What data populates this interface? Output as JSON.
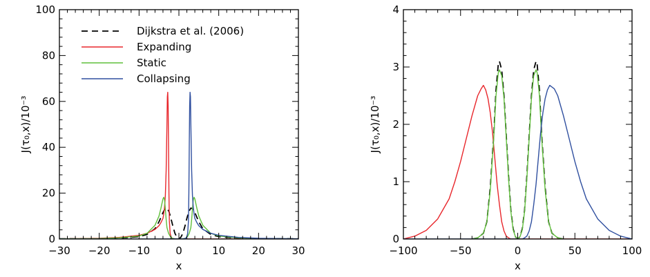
{
  "chart_data": [
    {
      "type": "line",
      "xlabel": "x",
      "ylabel": "J(τ₀,x)/10⁻³",
      "xlim": [
        -30,
        30
      ],
      "ylim": [
        0,
        100
      ],
      "x_ticks": [
        -30,
        -20,
        -10,
        0,
        10,
        20,
        30
      ],
      "y_ticks": [
        0,
        20,
        40,
        60,
        80,
        100
      ],
      "x_tick_labels": [
        "−30",
        "−20",
        "−10",
        "0",
        "10",
        "20",
        "30"
      ],
      "y_tick_labels": [
        "0",
        "20",
        "40",
        "60",
        "80",
        "100"
      ],
      "legend": {
        "placement": "top-left",
        "entries": [
          {
            "label": "Dijkstra et al. (2006)",
            "color": "#000000",
            "dash": "dashed"
          },
          {
            "label": "Expanding",
            "color": "#e8262b",
            "dash": "solid"
          },
          {
            "label": "Static",
            "color": "#5fbf3a",
            "dash": "solid"
          },
          {
            "label": "Collapsing",
            "color": "#2f4f9f",
            "dash": "solid"
          }
        ]
      },
      "series": [
        {
          "name": "Dijkstra et al. (2006)",
          "color": "#000000",
          "dash": "dashed",
          "x": [
            -30,
            -20,
            -15,
            -10,
            -8,
            -6,
            -5,
            -4,
            -3.5,
            -3,
            -2.5,
            -2,
            -1.5,
            -1,
            -0.5,
            0,
            0.5,
            1,
            1.5,
            2,
            2.5,
            3,
            3.5,
            4,
            5,
            6,
            8,
            10,
            15,
            20,
            30
          ],
          "y": [
            0.1,
            0.2,
            0.4,
            1.0,
            2.0,
            4.5,
            7.5,
            11.5,
            13.2,
            13.5,
            12.0,
            9.0,
            5.5,
            2.5,
            0.8,
            0.0,
            0.8,
            2.5,
            5.5,
            9.0,
            12.0,
            13.5,
            13.2,
            11.5,
            7.5,
            4.5,
            2.0,
            1.0,
            0.4,
            0.2,
            0.1
          ]
        },
        {
          "name": "Expanding",
          "color": "#e8262b",
          "dash": "solid",
          "x": [
            -30,
            -20,
            -15,
            -10,
            -8,
            -6,
            -5,
            -4.5,
            -4,
            -3.8,
            -3.6,
            -3.4,
            -3.2,
            -3.0,
            -2.9,
            -2.8,
            -2.7,
            -2.6,
            -2.5,
            -2.4,
            -2.2,
            -2.0,
            -1.8,
            -1.5,
            -1.0,
            0,
            2,
            5,
            10,
            30
          ],
          "y": [
            0.1,
            0.3,
            0.7,
            1.6,
            2.5,
            4.2,
            5.8,
            7.2,
            9.0,
            11.0,
            14.0,
            19.0,
            30.0,
            50.0,
            62.0,
            64.0,
            58.0,
            40.0,
            20.0,
            8.0,
            2.5,
            1.0,
            0.5,
            0.2,
            0.1,
            0.05,
            0.02,
            0.01,
            0.0,
            0.0
          ]
        },
        {
          "name": "Static",
          "color": "#5fbf3a",
          "dash": "solid",
          "x": [
            -30,
            -20,
            -15,
            -10,
            -8,
            -6,
            -5,
            -4.5,
            -4,
            -3.8,
            -3.6,
            -3.4,
            -3.2,
            -3.0,
            -2.6,
            -2.2,
            -1.8,
            -1.4,
            -1.0,
            -0.5,
            0,
            0.5,
            1.0,
            1.4,
            1.8,
            2.2,
            2.6,
            3.0,
            3.2,
            3.4,
            3.6,
            3.8,
            4,
            4.5,
            5,
            6,
            8,
            10,
            15,
            20,
            30
          ],
          "y": [
            0.1,
            0.2,
            0.5,
            1.3,
            2.5,
            6.0,
            10.0,
            13.5,
            17.5,
            18.2,
            17.0,
            13.0,
            8.5,
            5.0,
            2.5,
            1.2,
            0.5,
            0.2,
            0.1,
            0.0,
            0.0,
            0.0,
            0.1,
            0.2,
            0.5,
            1.2,
            2.5,
            5.0,
            8.5,
            13.0,
            17.0,
            18.2,
            17.5,
            13.5,
            10.0,
            6.0,
            2.5,
            1.3,
            0.5,
            0.2,
            0.1
          ]
        },
        {
          "name": "Collapsing",
          "color": "#2f4f9f",
          "dash": "solid",
          "x": [
            -30,
            -10,
            -5,
            -2,
            1.0,
            1.5,
            1.8,
            2.0,
            2.2,
            2.4,
            2.5,
            2.6,
            2.7,
            2.8,
            2.9,
            3.0,
            3.2,
            3.4,
            3.6,
            3.8,
            4.0,
            4.5,
            5,
            6,
            8,
            10,
            15,
            20,
            30
          ],
          "y": [
            0.0,
            0.0,
            0.01,
            0.05,
            0.1,
            0.2,
            0.5,
            1.0,
            2.5,
            8.0,
            20.0,
            40.0,
            58.0,
            64.0,
            62.0,
            50.0,
            30.0,
            19.0,
            14.0,
            11.0,
            9.0,
            7.2,
            5.8,
            4.2,
            2.5,
            1.6,
            0.7,
            0.3,
            0.1
          ]
        }
      ]
    },
    {
      "type": "line",
      "xlabel": "x",
      "ylabel": "J(τ₀,x)/10⁻³",
      "xlim": [
        -100,
        100
      ],
      "ylim": [
        0,
        4
      ],
      "x_ticks": [
        -100,
        -50,
        0,
        50,
        100
      ],
      "y_ticks": [
        0,
        1,
        2,
        3,
        4
      ],
      "x_tick_labels": [
        "−100",
        "−50",
        "0",
        "50",
        "100"
      ],
      "y_tick_labels": [
        "0",
        "1",
        "2",
        "3",
        "4"
      ],
      "series": [
        {
          "name": "Dijkstra et al. (2006)",
          "color": "#000000",
          "dash": "dashed",
          "x": [
            -40,
            -35,
            -30,
            -27,
            -24,
            -21,
            -19,
            -17,
            -16,
            -14,
            -12,
            -10,
            -8,
            -6,
            -4,
            -2,
            0,
            2,
            4,
            6,
            8,
            10,
            12,
            14,
            16,
            17,
            19,
            21,
            24,
            27,
            30,
            35,
            40
          ],
          "y": [
            0.0,
            0.02,
            0.1,
            0.3,
            0.9,
            1.8,
            2.6,
            3.05,
            3.1,
            2.95,
            2.5,
            1.8,
            1.1,
            0.5,
            0.18,
            0.04,
            0.0,
            0.04,
            0.18,
            0.5,
            1.1,
            1.8,
            2.5,
            2.95,
            3.1,
            3.05,
            2.6,
            1.8,
            0.9,
            0.3,
            0.1,
            0.02,
            0.0
          ]
        },
        {
          "name": "Expanding",
          "color": "#e8262b",
          "dash": "solid",
          "x": [
            -100,
            -90,
            -80,
            -70,
            -60,
            -55,
            -50,
            -45,
            -40,
            -35,
            -32,
            -30,
            -28,
            -26,
            -24,
            -22,
            -20,
            -18,
            -16,
            -14,
            -12,
            -10,
            -8,
            -6,
            -4,
            -2,
            0,
            10,
            50,
            100
          ],
          "y": [
            0.0,
            0.05,
            0.15,
            0.35,
            0.7,
            1.0,
            1.35,
            1.75,
            2.15,
            2.5,
            2.62,
            2.68,
            2.6,
            2.45,
            2.2,
            1.85,
            1.4,
            0.95,
            0.6,
            0.3,
            0.14,
            0.05,
            0.02,
            0.0,
            0.0,
            0.0,
            0.0,
            0.0,
            0.0,
            0.0
          ]
        },
        {
          "name": "Static",
          "color": "#5fbf3a",
          "dash": "solid",
          "x": [
            -40,
            -35,
            -30,
            -27,
            -24,
            -21,
            -19,
            -17,
            -16,
            -14,
            -12,
            -10,
            -8,
            -6,
            -4,
            -2,
            0,
            2,
            4,
            6,
            8,
            10,
            12,
            14,
            16,
            17,
            19,
            21,
            24,
            27,
            30,
            35,
            40
          ],
          "y": [
            0.0,
            0.02,
            0.1,
            0.3,
            0.85,
            1.75,
            2.5,
            2.9,
            2.95,
            2.85,
            2.45,
            1.75,
            1.05,
            0.48,
            0.16,
            0.04,
            0.0,
            0.04,
            0.16,
            0.48,
            1.05,
            1.75,
            2.45,
            2.85,
            2.95,
            2.9,
            2.5,
            1.75,
            0.85,
            0.3,
            0.1,
            0.02,
            0.0
          ]
        },
        {
          "name": "Collapsing",
          "color": "#2f4f9f",
          "dash": "solid",
          "x": [
            -100,
            -50,
            -10,
            0,
            2,
            4,
            6,
            8,
            10,
            12,
            14,
            16,
            18,
            20,
            22,
            24,
            26,
            28,
            30,
            32,
            35,
            40,
            45,
            50,
            55,
            60,
            70,
            80,
            90,
            100
          ],
          "y": [
            0.0,
            0.0,
            0.0,
            0.0,
            0.0,
            0.0,
            0.02,
            0.05,
            0.14,
            0.3,
            0.6,
            0.95,
            1.4,
            1.85,
            2.2,
            2.45,
            2.6,
            2.68,
            2.65,
            2.62,
            2.5,
            2.15,
            1.75,
            1.35,
            1.0,
            0.7,
            0.35,
            0.15,
            0.05,
            0.0
          ]
        }
      ]
    }
  ]
}
